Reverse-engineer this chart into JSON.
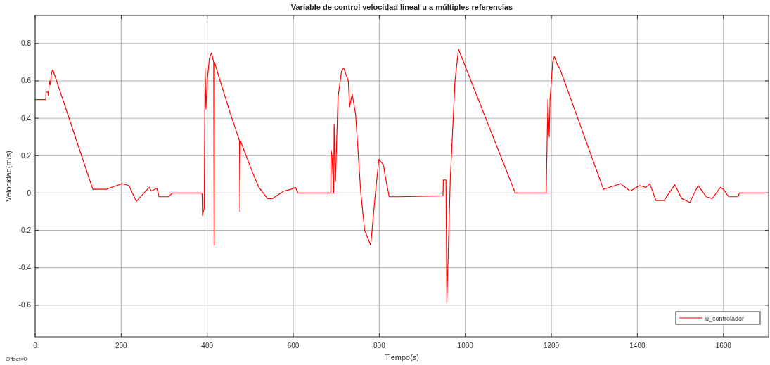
{
  "chart_data": {
    "type": "line",
    "title": "Variable de control velocidad lineal u a múltiples referencias",
    "xlabel": "Tiempo(s)",
    "ylabel": "Velocidad(m/s)",
    "annotations": [
      "Offset=0"
    ],
    "xlim": [
      0,
      1705
    ],
    "ylim": [
      -0.77,
      0.95
    ],
    "xticks": [
      0,
      200,
      400,
      600,
      800,
      1000,
      1200,
      1400,
      1600
    ],
    "yticks": [
      -0.6,
      -0.4,
      -0.2,
      0,
      0.2,
      0.4,
      0.6,
      0.8
    ],
    "grid": true,
    "legend": "bottom right",
    "line_style": "solid",
    "series": [
      {
        "name": "u_controlador",
        "color": "#ff0000",
        "x": [
          0,
          25,
          25,
          30,
          31,
          33,
          35,
          38,
          41,
          134,
          165,
          190,
          202,
          218,
          235,
          265,
          270,
          283,
          288,
          310,
          319,
          388,
          389,
          393,
          395,
          397,
          400,
          405,
          410,
          415,
          416,
          417,
          430,
          453,
          475,
          476,
          477,
          507,
          520,
          540,
          551,
          578,
          595,
          605,
          611,
          687,
          688,
          690,
          694,
          695,
          698,
          704,
          712,
          717,
          728,
          731,
          737,
          745,
          757,
          766,
          780,
          791,
          799,
          810,
          813,
          823,
          846,
          948,
          949,
          955,
          957,
          965,
          976,
          984,
          1116,
          1188,
          1189,
          1192,
          1195,
          1197,
          1203,
          1207,
          1215,
          1219,
          1321,
          1348,
          1361,
          1383,
          1405,
          1420,
          1429,
          1443,
          1462,
          1487,
          1503,
          1522,
          1541,
          1560,
          1574,
          1593,
          1600,
          1612,
          1634,
          1637,
          1705
        ],
        "values": [
          0.5,
          0.5,
          0.54,
          0.54,
          0.52,
          0.6,
          0.58,
          0.64,
          0.66,
          0.02,
          0.02,
          0.04,
          0.05,
          0.04,
          -0.045,
          0.03,
          0.01,
          0.025,
          -0.02,
          -0.02,
          0,
          0,
          -0.12,
          -0.08,
          0.67,
          0.45,
          0.6,
          0.72,
          0.75,
          0.7,
          -0.28,
          0.7,
          0.6,
          0.43,
          0.28,
          -0.1,
          0.28,
          0.1,
          0.03,
          -0.03,
          -0.03,
          0.01,
          0.02,
          0.03,
          0,
          0,
          0.23,
          0.2,
          0,
          0.37,
          0.06,
          0.51,
          0.65,
          0.67,
          0.6,
          0.46,
          0.53,
          0.42,
          0,
          -0.2,
          -0.28,
          0,
          0.18,
          0.15,
          0.1,
          -0.02,
          -0.02,
          -0.015,
          0.07,
          0.07,
          -0.59,
          0.07,
          0.6,
          0.77,
          0,
          0,
          0.14,
          0.5,
          0.3,
          0.5,
          0.7,
          0.73,
          0.68,
          0.67,
          0.02,
          0.04,
          0.05,
          0.01,
          0.04,
          0.03,
          0.05,
          -0.04,
          -0.04,
          0.045,
          -0.03,
          -0.05,
          0.04,
          -0.02,
          -0.03,
          0.03,
          0.02,
          -0.02,
          -0.02,
          0,
          0
        ]
      }
    ]
  }
}
